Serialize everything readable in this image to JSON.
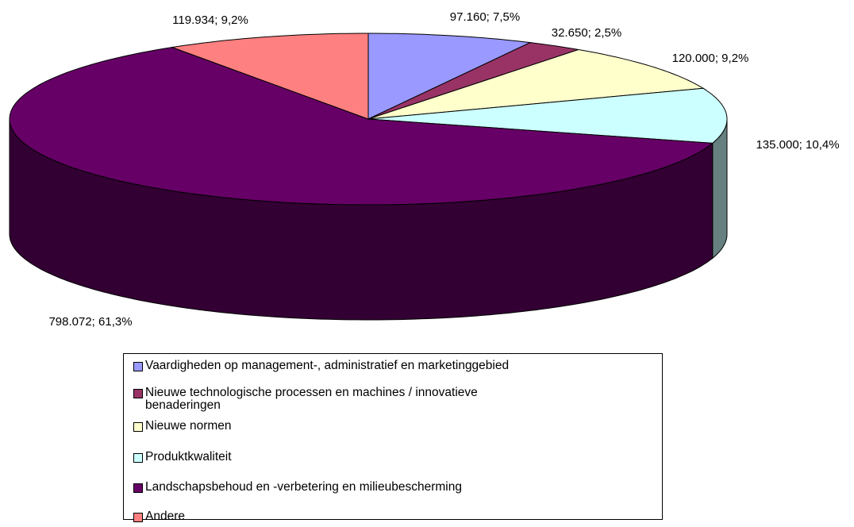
{
  "chart_data": {
    "type": "pie3d",
    "categories": [
      "Vaardigheden op management-, administratief en marketinggebied",
      "Nieuwe technologische processen en machines / innovatieve benaderingen",
      "Nieuwe normen",
      "Produktkwaliteit",
      "Landschapsbehoud en -verbetering en milieubescherming",
      "Andere"
    ],
    "values": [
      97160,
      32650,
      120000,
      135000,
      798072,
      119934
    ],
    "value_labels": [
      "97.160; 7,5%",
      "32.650; 2,5%",
      "120.000; 9,2%",
      "135.000; 10,4%",
      "798.072; 61,3%",
      "119.934; 9,2%"
    ],
    "colors": [
      "#9999ff",
      "#993366",
      "#ffffcc",
      "#ccffff",
      "#660066",
      "#ff8080"
    ],
    "legend": "bottom"
  }
}
